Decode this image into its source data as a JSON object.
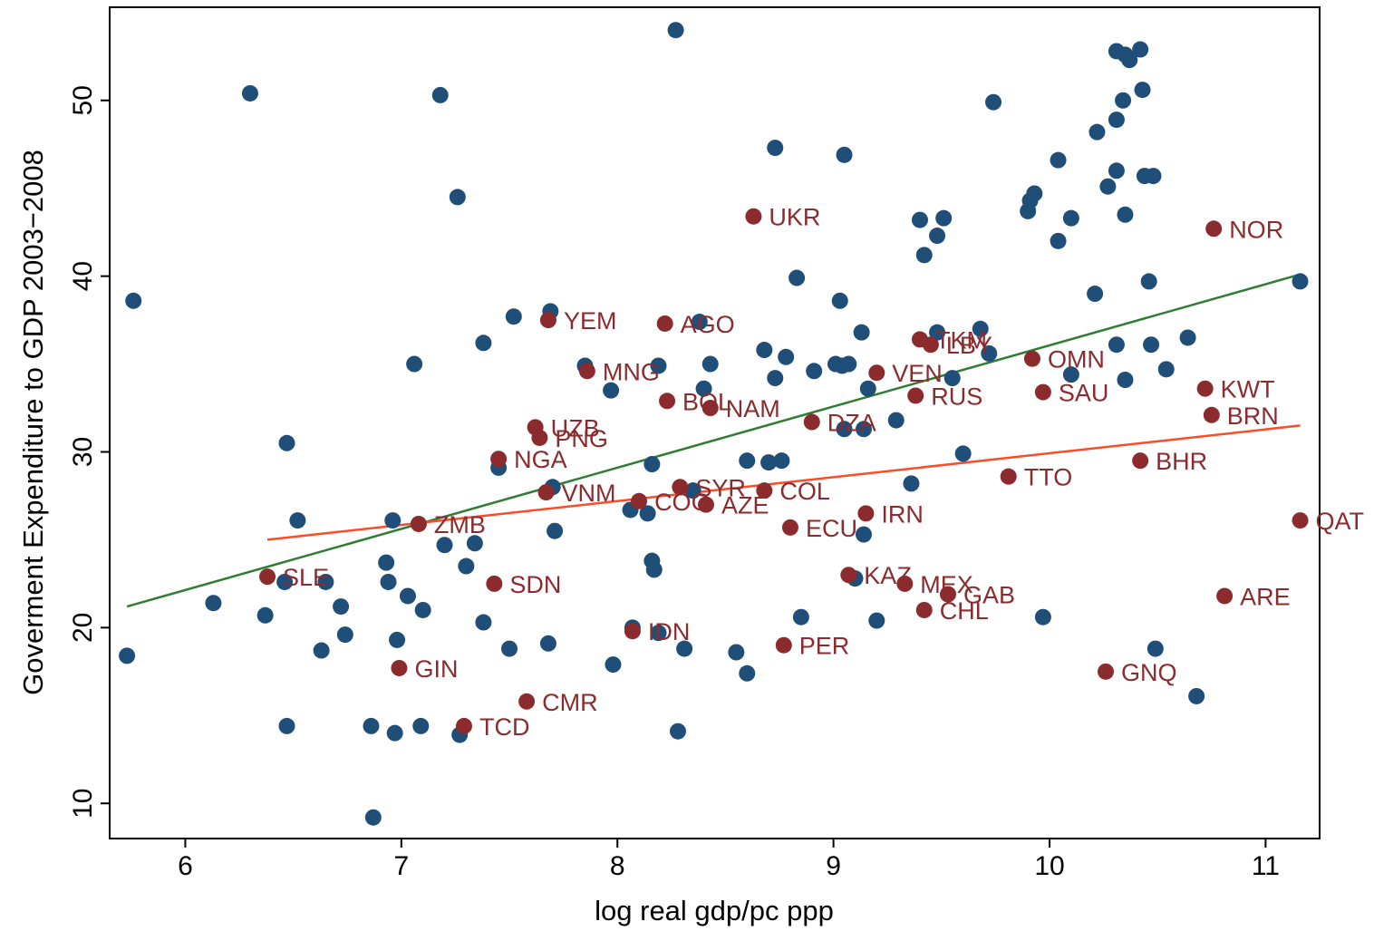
{
  "chart_data": {
    "type": "scatter",
    "title": "",
    "xlabel": "log real gdp/pc ppp",
    "ylabel": "Goverment Expenditure to GDP 2003−2008",
    "xlim": [
      5.65,
      11.25
    ],
    "ylim": [
      8.0,
      55.3
    ],
    "xticks": [
      6,
      7,
      8,
      9,
      10,
      11
    ],
    "yticks": [
      10,
      20,
      30,
      40,
      50
    ],
    "grid": false,
    "legend": "none",
    "colors": {
      "other": "#1f4e79",
      "resource": "#8b2b2e",
      "fit_all": "#2e7d32",
      "fit_resource": "#ff4a26"
    },
    "series": [
      {
        "key": "other",
        "points": [
          [
            5.73,
            18.4
          ],
          [
            5.76,
            38.6
          ],
          [
            6.13,
            21.4
          ],
          [
            6.3,
            50.4
          ],
          [
            6.37,
            20.7
          ],
          [
            6.46,
            22.6
          ],
          [
            6.47,
            14.4
          ],
          [
            6.47,
            30.5
          ],
          [
            6.52,
            26.1
          ],
          [
            6.63,
            18.7
          ],
          [
            6.65,
            22.6
          ],
          [
            6.72,
            21.2
          ],
          [
            6.74,
            19.6
          ],
          [
            6.86,
            14.4
          ],
          [
            6.87,
            9.2
          ],
          [
            6.93,
            23.7
          ],
          [
            6.94,
            22.6
          ],
          [
            6.96,
            26.1
          ],
          [
            6.97,
            14.0
          ],
          [
            6.98,
            19.3
          ],
          [
            7.03,
            21.8
          ],
          [
            7.06,
            35.0
          ],
          [
            7.09,
            14.4
          ],
          [
            7.1,
            21.0
          ],
          [
            7.18,
            50.3
          ],
          [
            7.2,
            24.7
          ],
          [
            7.26,
            44.5
          ],
          [
            7.27,
            13.9
          ],
          [
            7.3,
            23.5
          ],
          [
            7.34,
            24.8
          ],
          [
            7.38,
            36.2
          ],
          [
            7.38,
            20.3
          ],
          [
            7.45,
            29.1
          ],
          [
            7.5,
            18.8
          ],
          [
            7.52,
            37.7
          ],
          [
            7.68,
            19.1
          ],
          [
            7.69,
            38.0
          ],
          [
            7.7,
            28.0
          ],
          [
            7.71,
            25.5
          ],
          [
            7.85,
            34.9
          ],
          [
            7.97,
            33.5
          ],
          [
            7.98,
            17.9
          ],
          [
            8.06,
            26.7
          ],
          [
            8.07,
            20.0
          ],
          [
            8.14,
            26.5
          ],
          [
            8.16,
            29.3
          ],
          [
            8.16,
            23.8
          ],
          [
            8.17,
            23.3
          ],
          [
            8.19,
            34.9
          ],
          [
            8.19,
            19.7
          ],
          [
            8.27,
            54.0
          ],
          [
            8.28,
            14.1
          ],
          [
            8.31,
            18.8
          ],
          [
            8.35,
            27.8
          ],
          [
            8.38,
            37.4
          ],
          [
            8.4,
            33.6
          ],
          [
            8.43,
            35.0
          ],
          [
            8.55,
            18.6
          ],
          [
            8.6,
            17.4
          ],
          [
            8.6,
            29.5
          ],
          [
            8.68,
            35.8
          ],
          [
            8.7,
            29.4
          ],
          [
            8.73,
            34.2
          ],
          [
            8.73,
            47.3
          ],
          [
            8.76,
            29.5
          ],
          [
            8.78,
            35.4
          ],
          [
            8.83,
            39.9
          ],
          [
            8.85,
            20.6
          ],
          [
            8.91,
            34.6
          ],
          [
            9.01,
            35.0
          ],
          [
            9.03,
            38.6
          ],
          [
            9.04,
            34.9
          ],
          [
            9.05,
            31.3
          ],
          [
            9.05,
            46.9
          ],
          [
            9.07,
            35.0
          ],
          [
            9.1,
            22.8
          ],
          [
            9.13,
            36.8
          ],
          [
            9.14,
            31.3
          ],
          [
            9.14,
            25.3
          ],
          [
            9.16,
            33.6
          ],
          [
            9.2,
            20.4
          ],
          [
            9.29,
            31.8
          ],
          [
            9.36,
            28.2
          ],
          [
            9.4,
            43.2
          ],
          [
            9.42,
            41.2
          ],
          [
            9.48,
            42.3
          ],
          [
            9.48,
            36.8
          ],
          [
            9.51,
            43.3
          ],
          [
            9.55,
            34.2
          ],
          [
            9.6,
            29.9
          ],
          [
            9.68,
            37.0
          ],
          [
            9.72,
            35.6
          ],
          [
            9.74,
            49.9
          ],
          [
            9.9,
            43.7
          ],
          [
            9.91,
            44.3
          ],
          [
            9.93,
            44.7
          ],
          [
            9.97,
            20.6
          ],
          [
            10.04,
            42.0
          ],
          [
            10.04,
            46.6
          ],
          [
            10.1,
            43.3
          ],
          [
            10.1,
            34.4
          ],
          [
            10.21,
            39.0
          ],
          [
            10.22,
            48.2
          ],
          [
            10.27,
            45.1
          ],
          [
            10.31,
            36.1
          ],
          [
            10.31,
            46.0
          ],
          [
            10.31,
            48.9
          ],
          [
            10.31,
            52.8
          ],
          [
            10.34,
            50.0
          ],
          [
            10.35,
            34.1
          ],
          [
            10.35,
            52.6
          ],
          [
            10.35,
            43.5
          ],
          [
            10.37,
            52.3
          ],
          [
            10.42,
            52.9
          ],
          [
            10.43,
            50.6
          ],
          [
            10.44,
            45.7
          ],
          [
            10.46,
            39.7
          ],
          [
            10.47,
            36.1
          ],
          [
            10.48,
            45.7
          ],
          [
            10.49,
            18.8
          ],
          [
            10.54,
            34.7
          ],
          [
            10.64,
            36.5
          ],
          [
            10.68,
            16.1
          ],
          [
            11.16,
            39.7
          ]
        ]
      },
      {
        "key": "resource",
        "points": [
          {
            "x": 6.38,
            "y": 22.9,
            "label": "SLE"
          },
          {
            "x": 6.99,
            "y": 17.7,
            "label": "GIN"
          },
          {
            "x": 7.08,
            "y": 25.9,
            "label": "ZMB"
          },
          {
            "x": 7.29,
            "y": 14.4,
            "label": "TCD"
          },
          {
            "x": 7.43,
            "y": 22.5,
            "label": "SDN"
          },
          {
            "x": 7.45,
            "y": 29.6,
            "label": "NGA"
          },
          {
            "x": 7.58,
            "y": 15.8,
            "label": "CMR"
          },
          {
            "x": 7.62,
            "y": 31.4,
            "label": "UZB"
          },
          {
            "x": 7.64,
            "y": 30.8,
            "label": "PNG"
          },
          {
            "x": 7.67,
            "y": 27.7,
            "label": "VNM"
          },
          {
            "x": 7.68,
            "y": 37.5,
            "label": "YEM"
          },
          {
            "x": 7.86,
            "y": 34.6,
            "label": "MNG"
          },
          {
            "x": 8.07,
            "y": 19.8,
            "label": "IDN"
          },
          {
            "x": 8.1,
            "y": 27.2,
            "label": "COG"
          },
          {
            "x": 8.22,
            "y": 37.3,
            "label": "AGO"
          },
          {
            "x": 8.23,
            "y": 32.9,
            "label": "BOL"
          },
          {
            "x": 8.29,
            "y": 28.0,
            "label": "SYR"
          },
          {
            "x": 8.41,
            "y": 27.0,
            "label": "AZE"
          },
          {
            "x": 8.43,
            "y": 32.5,
            "label": "NAM"
          },
          {
            "x": 8.63,
            "y": 43.4,
            "label": "UKR"
          },
          {
            "x": 8.68,
            "y": 27.8,
            "label": "COL"
          },
          {
            "x": 8.77,
            "y": 19.0,
            "label": "PER"
          },
          {
            "x": 8.8,
            "y": 25.7,
            "label": "ECU"
          },
          {
            "x": 8.9,
            "y": 31.7,
            "label": "DZA"
          },
          {
            "x": 9.07,
            "y": 23.0,
            "label": "KAZ"
          },
          {
            "x": 9.15,
            "y": 26.5,
            "label": "IRN"
          },
          {
            "x": 9.2,
            "y": 34.5,
            "label": "VEN"
          },
          {
            "x": 9.33,
            "y": 22.5,
            "label": "MEX"
          },
          {
            "x": 9.38,
            "y": 33.2,
            "label": "RUS"
          },
          {
            "x": 9.4,
            "y": 36.4,
            "label": "TKM"
          },
          {
            "x": 9.42,
            "y": 21.0,
            "label": "CHL"
          },
          {
            "x": 9.45,
            "y": 36.1,
            "label": "LBY"
          },
          {
            "x": 9.53,
            "y": 21.9,
            "label": "GAB"
          },
          {
            "x": 9.81,
            "y": 28.6,
            "label": "TTO"
          },
          {
            "x": 9.92,
            "y": 35.3,
            "label": "OMN"
          },
          {
            "x": 9.97,
            "y": 33.4,
            "label": "SAU"
          },
          {
            "x": 10.26,
            "y": 17.5,
            "label": "GNQ"
          },
          {
            "x": 10.42,
            "y": 29.5,
            "label": "BHR"
          },
          {
            "x": 10.72,
            "y": 33.6,
            "label": "KWT"
          },
          {
            "x": 10.75,
            "y": 32.1,
            "label": "BRN"
          },
          {
            "x": 10.76,
            "y": 42.7,
            "label": "NOR"
          },
          {
            "x": 10.81,
            "y": 21.8,
            "label": "ARE"
          },
          {
            "x": 11.16,
            "y": 26.1,
            "label": "QAT"
          }
        ]
      }
    ],
    "fit_lines": [
      {
        "key": "fit_all",
        "x": [
          5.73,
          11.16
        ],
        "y": [
          21.2,
          40.1
        ]
      },
      {
        "key": "fit_resource",
        "x": [
          6.38,
          11.16
        ],
        "y": [
          25.0,
          31.5
        ]
      }
    ]
  }
}
